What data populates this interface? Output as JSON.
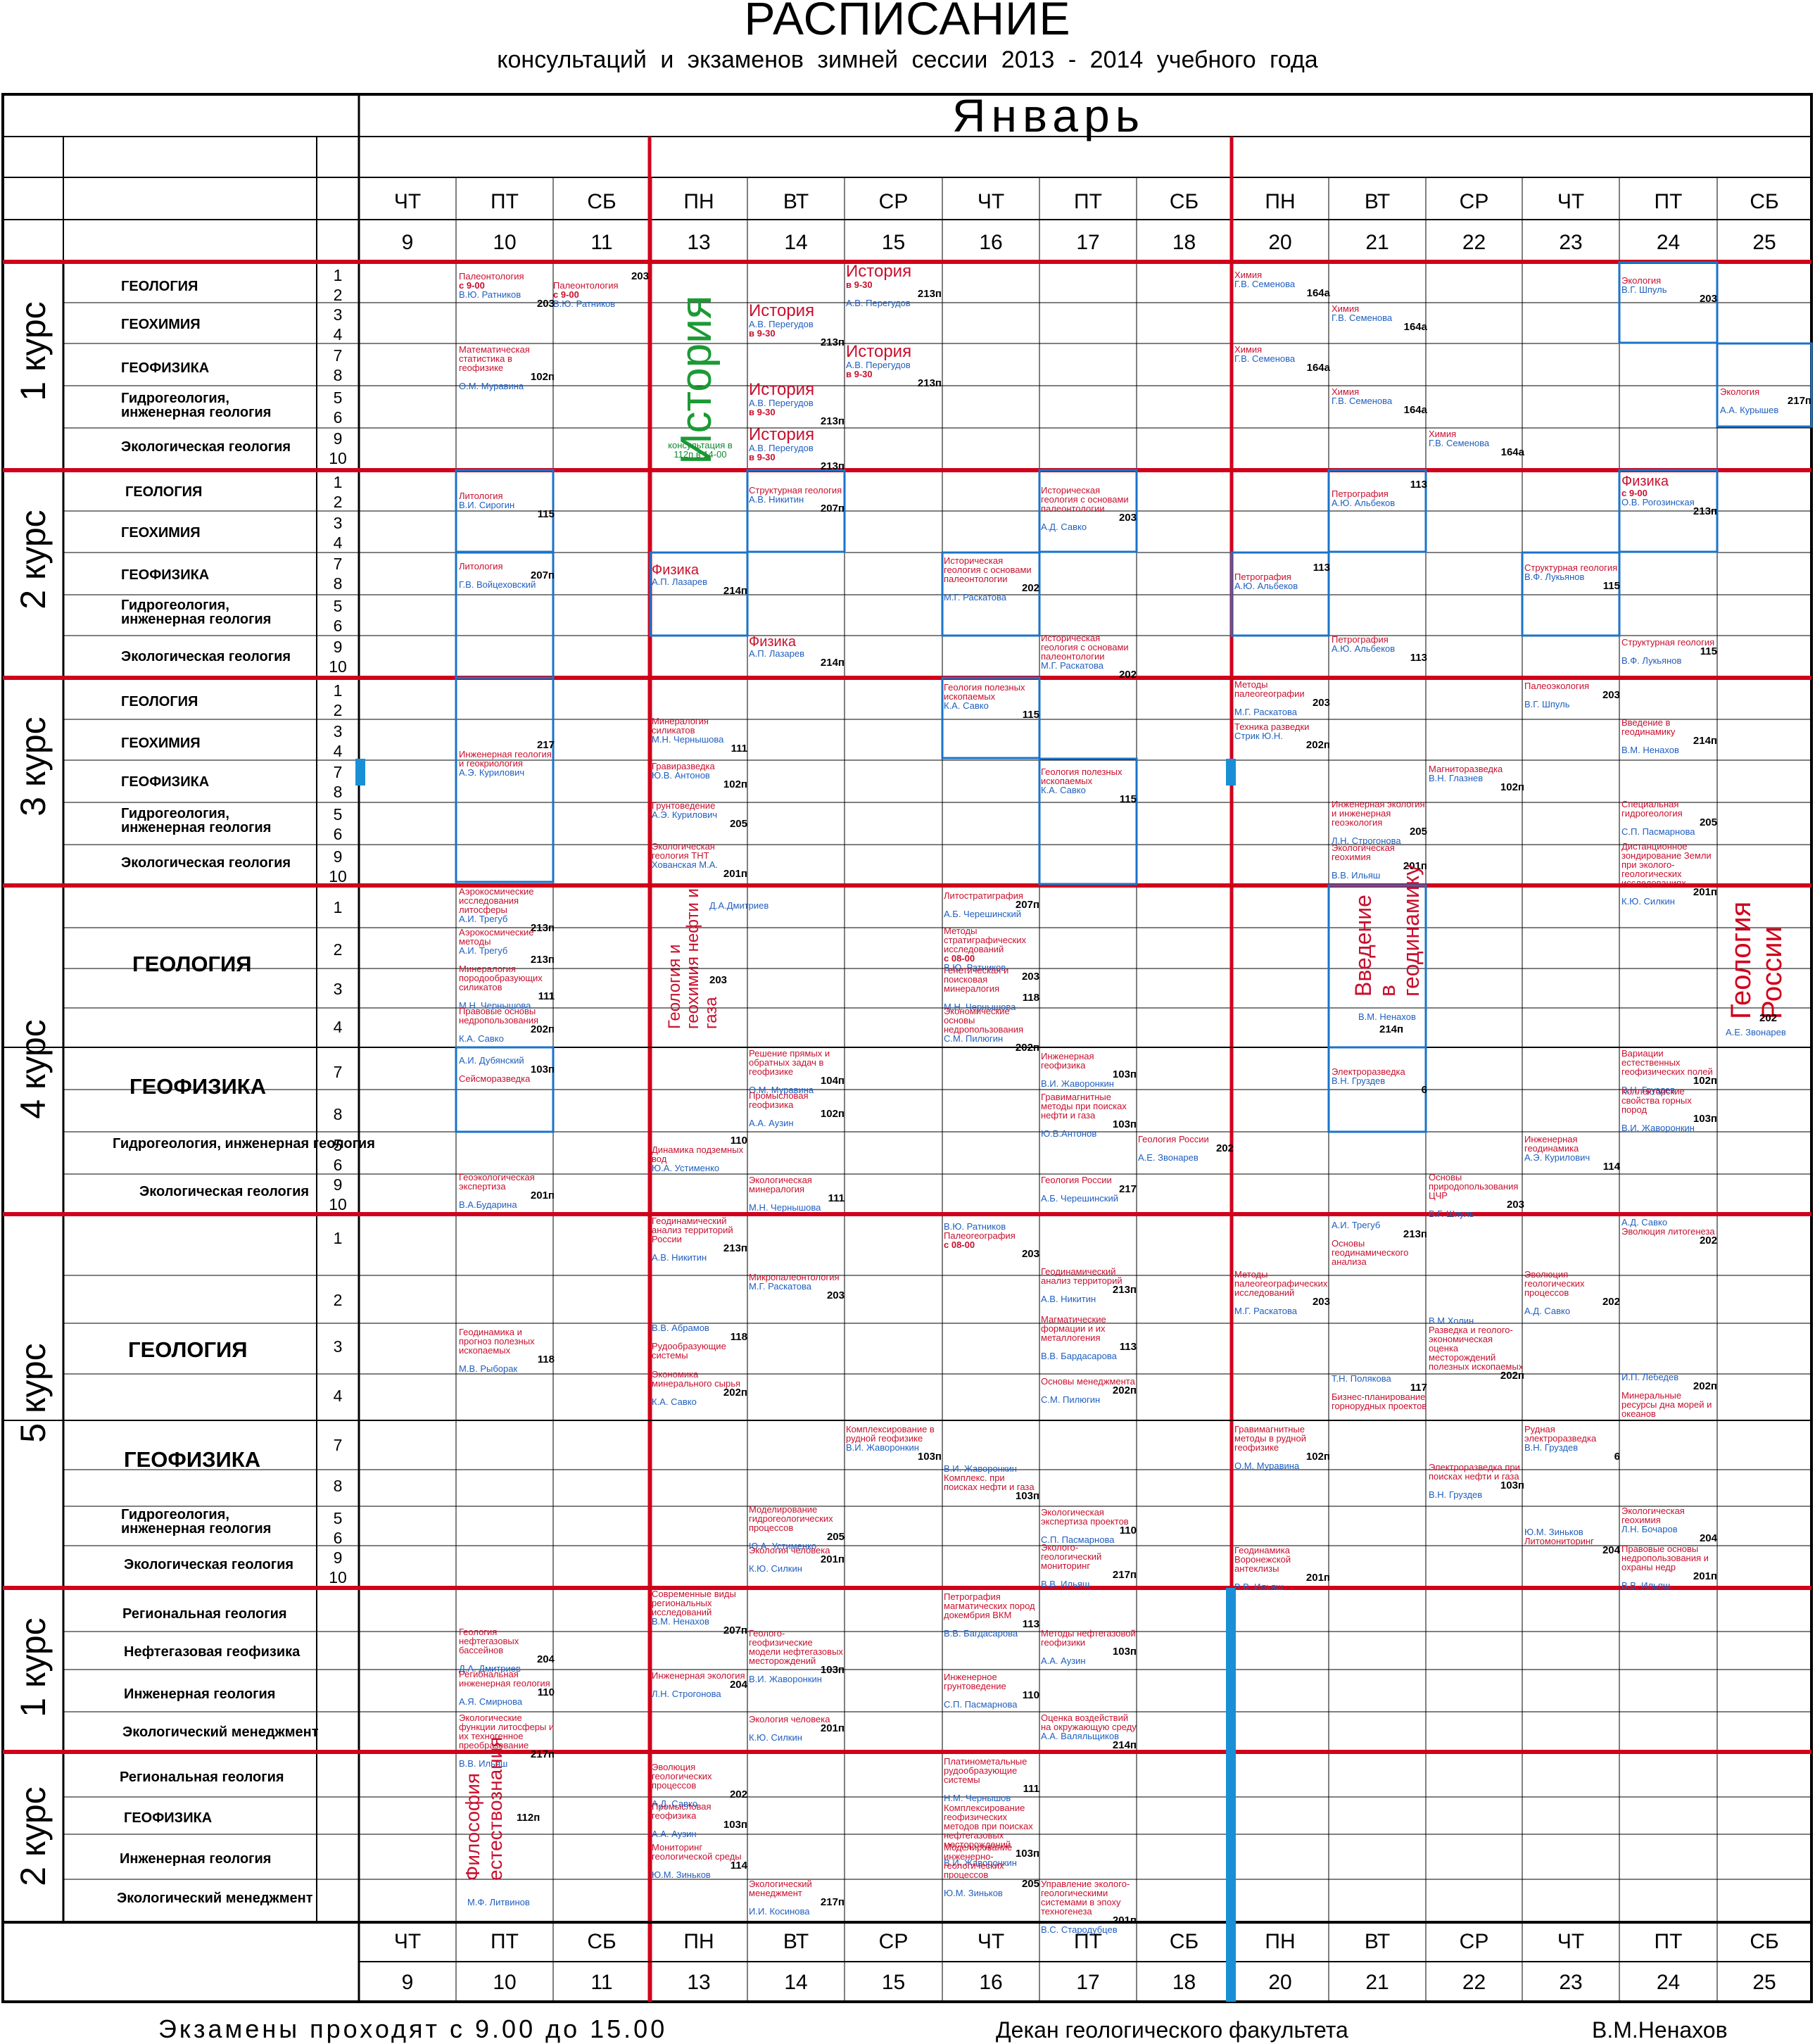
{
  "header": {
    "title": "РАСПИСАНИЕ",
    "subtitle": "консультаций и экзаменов     зимней  сессии     2013 - 2014    учебного    года",
    "month": "Январь"
  },
  "week_days": [
    "ЧТ",
    "ПТ",
    "СБ",
    "ПН",
    "ВТ",
    "СР",
    "ЧТ",
    "ПТ",
    "СБ",
    "ПН",
    "ВТ",
    "СР",
    "ЧТ",
    "ПТ",
    "СБ"
  ],
  "dates": [
    "9",
    "10",
    "11",
    "13",
    "14",
    "15",
    "16",
    "17",
    "18",
    "20",
    "21",
    "22",
    "23",
    "24",
    "25"
  ],
  "courses": [
    {
      "label": "1 курс",
      "subjects": [
        "ГЕОЛОГИЯ",
        "ГЕОХИМИЯ",
        "ГЕОФИЗИКА",
        "Гидрогеология, инженерная геология",
        "Экологическая геология"
      ],
      "groups": [
        "1\n2",
        "3\n4",
        "7\n8",
        "5\n6",
        "9\n10"
      ]
    },
    {
      "label": "2 курс",
      "subjects": [
        "ГЕОЛОГИЯ",
        "ГЕОХИМИЯ",
        "ГЕОФИЗИКА",
        "Гидрогеология, инженерная геология",
        "Экологическая геология"
      ],
      "groups": [
        "1\n2",
        "3\n4",
        "7\n8",
        "5\n6",
        "9\n10"
      ]
    },
    {
      "label": "3 курс",
      "subjects": [
        "ГЕОЛОГИЯ",
        "ГЕОХИМИЯ",
        "ГЕОФИЗИКА",
        "Гидрогеология, инженерная геология",
        "Экологическая геология"
      ],
      "groups": [
        "1\n2",
        "3\n4",
        "7\n8",
        "5\n6",
        "9\n10"
      ]
    },
    {
      "label": "4 курс",
      "subjects": [
        "ГЕОЛОГИЯ",
        "ГЕОФИЗИКА",
        "Гидрогеология, инженерная геология",
        "Экологическая геология"
      ],
      "groups": [
        "1",
        "2",
        "3",
        "4",
        "7",
        "8",
        "5\n6",
        "9\n10"
      ]
    },
    {
      "label": "5 курс",
      "subjects": [
        "ГЕОЛОГИЯ",
        "ГЕОФИЗИКА",
        "Гидрогеология, инженерная геология",
        "Экологическая геология"
      ],
      "groups": [
        "1",
        "2",
        "3",
        "4",
        "7",
        "8",
        "5\n6",
        "9\n10"
      ]
    },
    {
      "label": "1 курс",
      "subjects": [
        "Региональная геология",
        "Нефтегазовая геофизика",
        "Инженерная геология",
        "Экологический менеджмент"
      ]
    },
    {
      "label": "2 курс",
      "subjects": [
        "Региональная геология",
        "ГЕОФИЗИКА",
        "Инженерная геология",
        "Экологический менеджмент"
      ]
    }
  ],
  "events": {
    "c1": [
      {
        "name": "Палеонтология",
        "note": "с 9-00",
        "teacher": "В.Ю. Ратников",
        "room": "203"
      },
      {
        "room": "203",
        "name": "Палеонтология",
        "note": "с 9-00",
        "teacher": "В.Ю. Ратников"
      },
      {
        "name": "История",
        "note": "в 9-30",
        "room": "213п",
        "teacher": "А.В. Перегудов"
      },
      {
        "name": "История",
        "teacher": "А.В. Перегудов",
        "note": "в 9-30",
        "room": "213п"
      },
      {
        "name": "История",
        "teacher": "А.В. Перегудов",
        "note": "в 9-30",
        "room": "213п"
      },
      {
        "name": "История",
        "teacher": "А.В. Перегудов",
        "note": "в 9-30",
        "room": "213п"
      },
      {
        "name": "История",
        "teacher": "А.В. Перегудов",
        "note": "в 9-30",
        "room": "213п"
      },
      {
        "name": "Математическая статистика в геофизике",
        "room": "102п",
        "teacher": "О.М. Муравина"
      },
      {
        "name": "История",
        "extra": "консультация в 112п в 14-00"
      },
      {
        "name": "Химия",
        "teacher": "Г.В. Семенова",
        "room": "164а"
      },
      {
        "name": "Химия",
        "teacher": "Г.В. Семенова",
        "room": "164а"
      },
      {
        "name": "Химия",
        "teacher": "Г.В. Семенова",
        "room": "164а"
      },
      {
        "name": "Химия",
        "teacher": "Г.В. Семенова",
        "room": "164а"
      },
      {
        "name": "Химия",
        "teacher": "Г.В. Семенова",
        "room": "164а"
      },
      {
        "name": "Экология",
        "teacher": "В.Г. Шпуль",
        "room": "203"
      },
      {
        "name": "Экология",
        "room": "217п",
        "teacher": "А.А. Курышев"
      }
    ],
    "c2": [
      {
        "name": "Литология",
        "teacher": "В.И. Сирогин",
        "room": "115"
      },
      {
        "name": "Литология",
        "room": "207п",
        "teacher": "Г.В. Войцеховский"
      },
      {
        "name": "Структурная геология",
        "teacher": "А.В. Никитин",
        "room": "207п"
      },
      {
        "name": "Физика",
        "teacher": "А.П. Лазарев",
        "room": "214п"
      },
      {
        "name": "Физика",
        "teacher": "А.П. Лазарев",
        "room": "214п"
      },
      {
        "name": "Историческая геология с основами палеонтологии",
        "room": "203",
        "teacher": "А.Д. Савко"
      },
      {
        "name": "Историческая геология с основами палеонтологии",
        "room": "202",
        "teacher": "М.Г. Раскатова"
      },
      {
        "name": "Историческая геология с основами палеонтологии",
        "teacher": "М.Г. Раскатова",
        "room": "202"
      },
      {
        "room": "113",
        "name": "Петрография",
        "teacher": "А.Ю. Альбеков"
      },
      {
        "room": "113",
        "name": "Петрография",
        "teacher": "А.Ю. Альбеков"
      },
      {
        "name": "Петрография",
        "teacher": "А.Ю. Альбеков",
        "room": "113"
      },
      {
        "name": "Структурная геология",
        "teacher": "В.Ф. Лукьянов",
        "room": "115"
      },
      {
        "name": "Физика",
        "note": "с 9-00",
        "teacher": "О.В. Рогозинская",
        "room": "213п"
      },
      {
        "name": "Структурная геология",
        "room": "115",
        "teacher": "В.Ф. Лукьянов"
      }
    ],
    "c3": [
      {
        "room": "217",
        "name": "Инженерная геология и геокриология",
        "teacher": "А.Э. Курилович"
      },
      {
        "name": "Минералогия силикатов",
        "teacher": "М.Н. Чернышова",
        "room": "111"
      },
      {
        "name": "Гравиразведка",
        "teacher": "Ю.В. Антонов",
        "room": "102п"
      },
      {
        "name": "Грунтоведение",
        "teacher": "А.Э. Курилович",
        "room": "205"
      },
      {
        "name": "Экологическая геология ТНТ",
        "teacher": "Хованская М.А.",
        "room": "201п"
      },
      {
        "name": "Геология полезных ископаемых",
        "teacher": "К.А. Савко",
        "room": "115"
      },
      {
        "name": "Геология полезных ископаемых",
        "teacher": "К.А. Савко",
        "room": "115"
      },
      {
        "name": "Методы палеогеографии",
        "room": "203",
        "teacher": "М.Г. Раскатова"
      },
      {
        "name": "Техника разведки",
        "teacher": "Стрик Ю.Н.",
        "room": "202п"
      },
      {
        "name": "Инженерная экология и инженерная геоэкология",
        "room": "205",
        "teacher": "Л.Н. Строгонова"
      },
      {
        "name": "Экологическая геохимия",
        "room": "201п",
        "teacher": "В.В. Ильяш"
      },
      {
        "name": "Магниторазведка",
        "teacher": "В.Н. Глазнев",
        "room": "102п"
      },
      {
        "name": "Палеоэкология",
        "room": "203",
        "teacher": "В.Г. Шпуль"
      },
      {
        "name": "Введение в геодинамику",
        "room": "214п",
        "teacher": "В.М. Ненахов"
      },
      {
        "name": "Специальная гидрогеология",
        "room": "205",
        "teacher": "С.П. Пасмарнова"
      },
      {
        "name": "Дистанционное зондирование Земли при эколого-геологических исследованиях",
        "room": "201п",
        "teacher": "К.Ю. Силкин"
      }
    ],
    "c4": [
      {
        "name": "Аэрокосмические исследования литосферы",
        "teacher": "А.И. Трегуб",
        "room": "213п"
      },
      {
        "name": "Аэрокосмические методы",
        "teacher": "А.И. Трегуб",
        "room": "213п"
      },
      {
        "name": "Минералогия породообразующих силикатов",
        "room": "111",
        "teacher": "М.Н. Чернышова"
      },
      {
        "name": "Правовые основы недропользования",
        "room": "202п",
        "teacher": "К.А. Савко"
      },
      {
        "name": "Геология и геохимия нефти и газа",
        "teacher": "Д.А.Дмитриев",
        "room": "203"
      },
      {
        "name": "Литостратиграфия",
        "room": "207п",
        "teacher": "А.Б. Черешинский"
      },
      {
        "name": "Методы стратиграфических исследований",
        "note": "с 08-00",
        "teacher": "В.Ю. Ратников",
        "room": "203"
      },
      {
        "name": "Генетическая и поисковая минералогия",
        "room": "118",
        "teacher": "М.Н. Чернышова"
      },
      {
        "name": "Экономические основы недропользования",
        "teacher": "С.М. Пилюгин",
        "room": "202п"
      },
      {
        "name": "Введение в геодинамику",
        "teacher": "В.М. Ненахов",
        "room": "214п"
      },
      {
        "name": "Геология России",
        "room": "202",
        "teacher": "А.Е. Звонарев"
      },
      {
        "teacher": "А.И. Дубянский",
        "room": "103п",
        "name": "Сейсморазведка"
      },
      {
        "name": "Решение прямых и обратных задач в геофизике",
        "room": "104п",
        "teacher": "О.М. Муравина"
      },
      {
        "name": "Промысловая геофизика",
        "room": "102п",
        "teacher": "А.А. Аузин"
      },
      {
        "name": "Инженерная геофизика",
        "room": "103п",
        "teacher": "В.И. Жаворонкин"
      },
      {
        "name": "Гравимагнитные методы при поисках нефти и газа",
        "room": "103п",
        "teacher": "Ю.В.Антонов"
      },
      {
        "name": "Электроразведка",
        "teacher": "В.Н. Груздев",
        "room": "6"
      },
      {
        "name": "Вариации естественных геофизических полей",
        "room": "102п",
        "teacher": "В.Н. Груздев"
      },
      {
        "name": "Коллекторские свойства горных пород",
        "room": "103п",
        "teacher": "В.И. Жаворонкин"
      },
      {
        "room": "110",
        "name": "Динамика подземных вод",
        "teacher": "Ю.А. Устименко"
      },
      {
        "name": "Геология России",
        "room": "202",
        "teacher": "А.Е. Звонарев"
      },
      {
        "name": "Инженерная геодинамика",
        "teacher": "А.Э. Курилович",
        "room": "114"
      },
      {
        "name": "Геоэкологическая экспертиза",
        "room": "201п",
        "teacher": "В.А.Бударина"
      },
      {
        "name": "Экологическая минералогия",
        "room": "111",
        "teacher": "М.Н. Чернышова"
      },
      {
        "name": "Геология России",
        "room": "217",
        "teacher": "А.Б. Черешинский"
      },
      {
        "name": "Основы природопользования ЦЧР",
        "room": "203",
        "teacher": "В.Г. Шпуль"
      }
    ],
    "c5": [
      {
        "name": "Геодинамический анализ территорий России",
        "room": "213п",
        "teacher": "А.В. Никитин"
      },
      {
        "name": "Микропалеонтология",
        "teacher": "М.Г. Раскатова",
        "room": "203"
      },
      {
        "teacher": "В.Ю. Ратников",
        "name": "Палеогеография",
        "note": "с 08-00",
        "room": "203"
      },
      {
        "name": "Геодинамический анализ территорий",
        "room": "213п",
        "teacher": "А.В. Никитин"
      },
      {
        "teacher": "А.И. Трегуб",
        "room": "213п",
        "name": "Основы геодинамического анализа"
      },
      {
        "name": "Методы палеогеографических исследований",
        "room": "203",
        "teacher": "М.Г. Раскатова"
      },
      {
        "name": "Эволюция геологических процессов",
        "room": "202",
        "teacher": "А.Д. Савко"
      },
      {
        "teacher": "А.Д. Савко",
        "name": "Эволюция литогенеза",
        "room": "202"
      },
      {
        "name": "Геодинамика и прогноз полезных ископаемых",
        "room": "118",
        "teacher": "М.В. Рыборак"
      },
      {
        "teacher": "В.В. Абрамов",
        "room": "118",
        "name": "Рудообразующие системы"
      },
      {
        "name": "Магматические формации и их металлогения",
        "room": "113",
        "teacher": "В.В. Бардасарова"
      },
      {
        "teacher": "В.М.Холин",
        "name": "Разведка и геолого-экономическая оценка месторождений полезных ископаемых",
        "room": "202п"
      },
      {
        "name": "Экономика минерального сырья",
        "room": "202п",
        "teacher": "К.А. Савко"
      },
      {
        "name": "Основы менеджмента",
        "room": "202п",
        "teacher": "С.М. Пилюгин"
      },
      {
        "teacher": "Т.Н. Полякова",
        "room": "117",
        "name": "Бизнес-планирование горнорудных проектов"
      },
      {
        "teacher": "И.П. Лебедев",
        "room": "202п",
        "name": "Минеральные ресурсы дна морей и океанов"
      },
      {
        "name": "Комплексирование в рудной геофизике",
        "teacher": "В.И. Жаворонкин",
        "room": "103п"
      },
      {
        "teacher": "В.И. Жаворонкин",
        "name": "Комплекс. при поисках нефти и газа",
        "room": "103п"
      },
      {
        "name": "Гравимагнитные методы в рудной геофизике",
        "room": "102п",
        "teacher": "О.М. Муравина"
      },
      {
        "name": "Электроразведка при поисках нефти и газа",
        "room": "103п",
        "teacher": "В.Н. Груздев"
      },
      {
        "name": "Рудная электроразведка",
        "teacher": "В.Н. Груздев",
        "room": "6"
      },
      {
        "name": "Моделирование гидрогеологических процессов",
        "room": "205",
        "teacher": "Ю.А. Устименко"
      },
      {
        "name": "Экологическая экспертиза проектов",
        "room": "110",
        "teacher": "С.П. Пасмарнова"
      },
      {
        "teacher": "Ю.М. Зиньков",
        "name": "Литомониторинг",
        "room": "204"
      },
      {
        "name": "Экологическая геохимия",
        "teacher": "Л.Н. Бочаров",
        "room": "204"
      },
      {
        "name": "Экология человека",
        "room": "201п",
        "teacher": "К.Ю. Силкин"
      },
      {
        "name": "Эколого-геологический мониторинг",
        "room": "217п",
        "teacher": "В.В. Ильяш"
      },
      {
        "name": "Геодинамика Воронежской антеклизы",
        "room": "201п",
        "teacher": "В.В. Ильяш"
      },
      {
        "name": "Правовые основы недропользования и охраны недр",
        "room": "201п",
        "teacher": "В.В. Ильяш"
      }
    ],
    "m1": [
      {
        "name": "Современные виды региональных исследований",
        "teacher": "В.М. Ненахов",
        "room": "207п"
      },
      {
        "name": "Петрография магматических пород докембрия ВКМ",
        "room": "113",
        "teacher": "В.В. Багдасарова"
      },
      {
        "name": "Геология нефтегазовых бассейнов",
        "room": "204",
        "teacher": "Д.А. Дмитриев"
      },
      {
        "name": "Геолого-геофизические модели нефтегазовых месторождений",
        "room": "103п",
        "teacher": "В.И. Жаворонкин"
      },
      {
        "name": "Методы нефтегазовой геофизики",
        "room": "103п",
        "teacher": "А.А. Аузин"
      },
      {
        "name": "Региональная инженерная геология",
        "room": "110",
        "teacher": "А.Я. Смирнова"
      },
      {
        "name": "Инженерная экология",
        "room": "204",
        "teacher": "Л.Н. Строгонова"
      },
      {
        "name": "Инженерное грунтоведение",
        "room": "110",
        "teacher": "С.П. Пасмарнова"
      },
      {
        "name": "Экологические функции литосферы и их техногенное преобразование",
        "room": "217п",
        "teacher": "В.В. Ильяш"
      },
      {
        "name": "Экология человека",
        "room": "201п",
        "teacher": "К.Ю. Силкин"
      },
      {
        "name": "Оценка воздействий на окружающую среду",
        "teacher": "А.А. Валяльщиков",
        "room": "214п"
      }
    ],
    "m2": [
      {
        "name": "Философия естествознания",
        "room": "112п",
        "teacher": "М.Ф. Литвинов"
      },
      {
        "name": "Эволюция геологических процессов",
        "room": "202",
        "teacher": "А.Д. Савко"
      },
      {
        "name": "Платинометальные рудообразующие системы",
        "room": "111",
        "teacher": "Н.М. Чернышов"
      },
      {
        "name": "Промысловая геофизика",
        "room": "103п",
        "teacher": "А.А. Аузин"
      },
      {
        "name": "Комплексирование геофизических методов при поисках нефтегазовых месторождений",
        "room": "103п",
        "teacher": "В.И. Жаворонкин"
      },
      {
        "name": "Мониторинг геологической среды",
        "room": "114",
        "teacher": "Ю.М. Зиньков"
      },
      {
        "name": "Моделирование инженерно-геологических процессов",
        "room": "205",
        "teacher": "Ю.М. Зиньков"
      },
      {
        "name": "Экологический менеджмент",
        "room": "217п",
        "teacher": "И.И. Косинова"
      },
      {
        "name": "Управление эколого-геологическими системами в эпоху техногенеза",
        "room": "201п",
        "teacher": "В.С. Стародубцев"
      }
    ]
  },
  "footer": {
    "left": "Экзамены проходят с 9.00 до 15.00",
    "middle": "Декан геологического факультета",
    "right": "В.М.Ненахов"
  }
}
